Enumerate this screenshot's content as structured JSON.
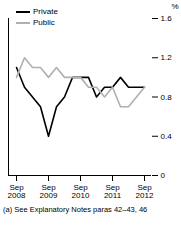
{
  "chart_data": {
    "type": "line",
    "footnote": "(a) See Explanatory Notes paras 42–43, 46",
    "y_label": "%",
    "categories": [
      "Sep 2008",
      null,
      null,
      null,
      "Sep 2009",
      null,
      null,
      null,
      "Sep 2010",
      null,
      null,
      null,
      "Sep 2011",
      null,
      null,
      null,
      "Sep 2012"
    ],
    "series": [
      {
        "name": "Private",
        "color": "#000000",
        "values": [
          1.1,
          0.9,
          0.8,
          0.7,
          0.4,
          0.7,
          0.8,
          1.0,
          1.0,
          1.0,
          0.8,
          0.9,
          0.9,
          1.0,
          0.9,
          0.9,
          0.9
        ]
      },
      {
        "name": "Public",
        "color": "#b0b0b0",
        "values": [
          1.0,
          1.2,
          1.1,
          1.1,
          1.0,
          1.1,
          1.0,
          1.0,
          1.0,
          0.9,
          0.9,
          0.8,
          0.9,
          0.7,
          0.7,
          0.8,
          0.9
        ]
      }
    ],
    "ylim": [
      0,
      1.6
    ],
    "yticks": [
      0,
      0.4,
      0.8,
      1.2,
      1.6
    ],
    "legend": "top-left",
    "grid": false
  }
}
